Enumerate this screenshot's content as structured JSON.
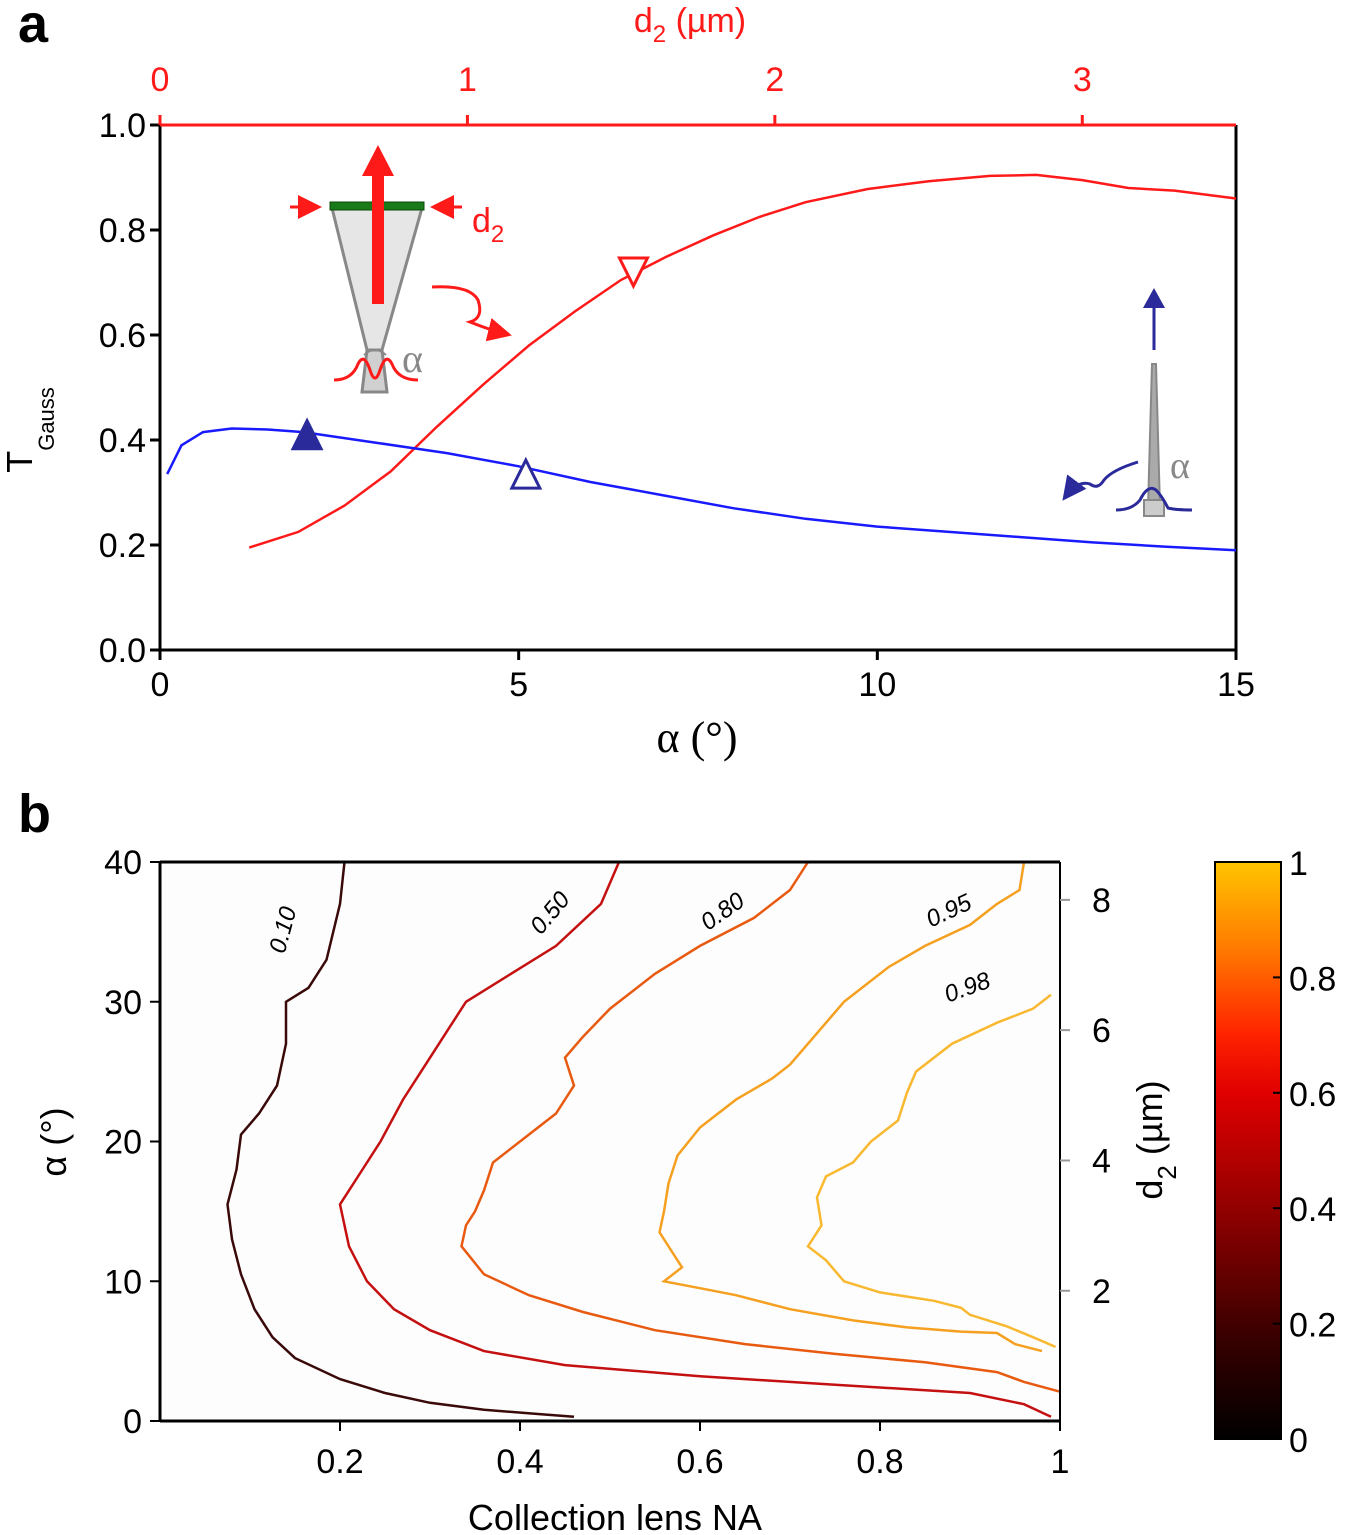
{
  "chart_data": [
    {
      "id": "a",
      "type": "line",
      "panel_label": "a",
      "xlabel": "α (°)",
      "ylabel_main": "T",
      "ylabel_sub": "Gauss",
      "top_xlabel_main": "d",
      "top_xlabel_sub": "2",
      "top_xlabel_unit": " (µm)",
      "xlim": [
        0,
        15
      ],
      "ylim": [
        0,
        1
      ],
      "top_xlim": [
        0,
        3.5
      ],
      "x_ticks": [
        0,
        5,
        10,
        15
      ],
      "x_tick_labels": [
        "0",
        "5",
        "10",
        "15"
      ],
      "y_ticks": [
        0,
        0.2,
        0.4,
        0.6,
        0.8,
        1.0
      ],
      "y_tick_labels": [
        "0.0",
        "0.2",
        "0.4",
        "0.6",
        "0.8",
        "1.0"
      ],
      "top_ticks": [
        0,
        1,
        2,
        3
      ],
      "top_tick_labels": [
        "0",
        "1",
        "2",
        "3"
      ],
      "series": [
        {
          "name": "d2 curve",
          "axis": "top",
          "color": "#ff1a1a",
          "points": [
            [
              0.29,
              0.195
            ],
            [
              0.45,
              0.225
            ],
            [
              0.6,
              0.275
            ],
            [
              0.75,
              0.34
            ],
            [
              0.9,
              0.425
            ],
            [
              1.05,
              0.505
            ],
            [
              1.2,
              0.58
            ],
            [
              1.35,
              0.645
            ],
            [
              1.5,
              0.705
            ],
            [
              1.65,
              0.75
            ],
            [
              1.8,
              0.79
            ],
            [
              1.95,
              0.825
            ],
            [
              2.1,
              0.853
            ],
            [
              2.3,
              0.878
            ],
            [
              2.5,
              0.893
            ],
            [
              2.7,
              0.903
            ],
            [
              2.85,
              0.905
            ],
            [
              3.0,
              0.895
            ],
            [
              3.15,
              0.88
            ],
            [
              3.3,
              0.875
            ],
            [
              3.5,
              0.86
            ]
          ]
        },
        {
          "name": "α curve",
          "axis": "bottom",
          "color": "#1a1aff",
          "points": [
            [
              0.1,
              0.335
            ],
            [
              0.3,
              0.39
            ],
            [
              0.6,
              0.415
            ],
            [
              1.0,
              0.422
            ],
            [
              1.5,
              0.42
            ],
            [
              2.0,
              0.415
            ],
            [
              3.0,
              0.395
            ],
            [
              4.0,
              0.375
            ],
            [
              5.0,
              0.35
            ],
            [
              6.0,
              0.32
            ],
            [
              7.0,
              0.295
            ],
            [
              8.0,
              0.27
            ],
            [
              9.0,
              0.25
            ],
            [
              10.0,
              0.235
            ],
            [
              11.0,
              0.225
            ],
            [
              12.0,
              0.215
            ],
            [
              13.0,
              0.205
            ],
            [
              14.0,
              0.197
            ],
            [
              15.0,
              0.19
            ]
          ]
        }
      ],
      "markers": [
        {
          "name": "filled-up-triangle",
          "x": 2.05,
          "y": 0.41,
          "color": "#2a2a9a",
          "fill": true,
          "dir": "up"
        },
        {
          "name": "open-up-triangle",
          "x": 5.1,
          "y": 0.335,
          "color": "#2a2a9a",
          "fill": false,
          "dir": "up"
        },
        {
          "name": "open-down-triangle",
          "x": 6.6,
          "y": 0.72,
          "color": "#ff1a1a",
          "fill": false,
          "dir": "down"
        }
      ],
      "annotations": {
        "inset_left": {
          "label_main": "d",
          "label_sub": "2",
          "alpha": "α"
        },
        "inset_right": {
          "alpha": "α"
        }
      }
    },
    {
      "id": "b",
      "type": "contour",
      "panel_label": "b",
      "xlabel": "Collection lens NA",
      "ylabel": "α (°)",
      "right_ylabel_main": "d",
      "right_ylabel_sub": "2",
      "right_ylabel_unit": " (µm)",
      "xlim": [
        0,
        1
      ],
      "ylim": [
        0,
        40
      ],
      "x_ticks": [
        0.2,
        0.4,
        0.6,
        0.8,
        1.0
      ],
      "x_tick_labels": [
        "0.2",
        "0.4",
        "0.6",
        "0.8",
        "1"
      ],
      "y_ticks": [
        0,
        10,
        20,
        30,
        40
      ],
      "y_tick_labels": [
        "0",
        "10",
        "20",
        "30",
        "40"
      ],
      "right_ticks_alpha": [
        9.32,
        18.64,
        27.97,
        37.29
      ],
      "right_tick_labels": [
        "2",
        "4",
        "6",
        "8"
      ],
      "colorbar": {
        "range": [
          0,
          1
        ],
        "ticks": [
          0,
          0.2,
          0.4,
          0.6,
          0.8,
          1
        ],
        "tick_labels": [
          "0",
          "0.2",
          "0.4",
          "0.6",
          "0.8",
          "1"
        ],
        "stops": [
          "#000000",
          "#3a0000",
          "#8a0000",
          "#e00000",
          "#ff2200",
          "#ff7a00",
          "#ffc400"
        ]
      },
      "contours": [
        {
          "level": "0.10",
          "color": "#3a0a0a",
          "label_pos": [
            0.145,
            35
          ],
          "label_rot": -75,
          "points": [
            [
              0.205,
              40
            ],
            [
              0.2,
              37
            ],
            [
              0.185,
              33
            ],
            [
              0.165,
              31
            ],
            [
              0.14,
              30
            ],
            [
              0.14,
              27
            ],
            [
              0.13,
              24
            ],
            [
              0.11,
              22
            ],
            [
              0.09,
              20.5
            ],
            [
              0.085,
              18
            ],
            [
              0.075,
              15.5
            ],
            [
              0.08,
              13
            ],
            [
              0.09,
              10.5
            ],
            [
              0.105,
              8
            ],
            [
              0.125,
              6
            ],
            [
              0.15,
              4.5
            ],
            [
              0.2,
              3
            ],
            [
              0.25,
              2
            ],
            [
              0.3,
              1.3
            ],
            [
              0.36,
              0.8
            ],
            [
              0.42,
              0.5
            ],
            [
              0.46,
              0.3
            ]
          ]
        },
        {
          "level": "0.50",
          "color": "#c41010",
          "label_pos": [
            0.44,
            36
          ],
          "label_rot": -50,
          "points": [
            [
              0.51,
              40
            ],
            [
              0.49,
              37
            ],
            [
              0.44,
              34
            ],
            [
              0.39,
              32
            ],
            [
              0.34,
              30
            ],
            [
              0.32,
              28
            ],
            [
              0.3,
              26
            ],
            [
              0.27,
              23
            ],
            [
              0.245,
              20
            ],
            [
              0.225,
              18
            ],
            [
              0.2,
              15.5
            ],
            [
              0.21,
              12.5
            ],
            [
              0.23,
              10
            ],
            [
              0.26,
              8
            ],
            [
              0.3,
              6.5
            ],
            [
              0.36,
              5
            ],
            [
              0.45,
              4
            ],
            [
              0.6,
              3.2
            ],
            [
              0.75,
              2.6
            ],
            [
              0.9,
              2
            ],
            [
              0.96,
              1.2
            ],
            [
              0.99,
              0.3
            ]
          ]
        },
        {
          "level": "0.80",
          "color": "#e85a10",
          "label_pos": [
            0.63,
            36
          ],
          "label_rot": -35,
          "points": [
            [
              0.72,
              40
            ],
            [
              0.7,
              38
            ],
            [
              0.66,
              36
            ],
            [
              0.6,
              34
            ],
            [
              0.55,
              32
            ],
            [
              0.5,
              29.5
            ],
            [
              0.47,
              27.5
            ],
            [
              0.45,
              26
            ],
            [
              0.46,
              24
            ],
            [
              0.44,
              22
            ],
            [
              0.4,
              20
            ],
            [
              0.37,
              18.5
            ],
            [
              0.36,
              16.5
            ],
            [
              0.35,
              15
            ],
            [
              0.34,
              14
            ],
            [
              0.335,
              12.5
            ],
            [
              0.36,
              10.5
            ],
            [
              0.41,
              9
            ],
            [
              0.47,
              7.8
            ],
            [
              0.55,
              6.5
            ],
            [
              0.65,
              5.5
            ],
            [
              0.75,
              4.8
            ],
            [
              0.85,
              4.2
            ],
            [
              0.93,
              3.5
            ],
            [
              0.96,
              2.8
            ],
            [
              1.0,
              2.1
            ]
          ]
        },
        {
          "level": "0.95",
          "color": "#f5a020",
          "label_pos": [
            0.88,
            36
          ],
          "label_rot": -25,
          "points": [
            [
              0.96,
              40
            ],
            [
              0.955,
              38
            ],
            [
              0.93,
              37
            ],
            [
              0.9,
              35.5
            ],
            [
              0.85,
              34
            ],
            [
              0.81,
              32.5
            ],
            [
              0.76,
              30
            ],
            [
              0.72,
              27
            ],
            [
              0.7,
              25.5
            ],
            [
              0.68,
              24.5
            ],
            [
              0.64,
              23
            ],
            [
              0.6,
              21
            ],
            [
              0.575,
              19
            ],
            [
              0.565,
              17
            ],
            [
              0.56,
              15
            ],
            [
              0.555,
              13.5
            ],
            [
              0.57,
              12
            ],
            [
              0.58,
              11
            ],
            [
              0.56,
              10
            ],
            [
              0.6,
              9.5
            ],
            [
              0.64,
              9
            ],
            [
              0.7,
              8
            ],
            [
              0.77,
              7.2
            ],
            [
              0.83,
              6.7
            ],
            [
              0.89,
              6.4
            ],
            [
              0.93,
              6.3
            ],
            [
              0.95,
              5.5
            ],
            [
              0.98,
              5
            ]
          ]
        },
        {
          "level": "0.98",
          "color": "#f8b830",
          "label_pos": [
            0.9,
            30.5
          ],
          "label_rot": -20,
          "points": [
            [
              0.99,
              30.5
            ],
            [
              0.97,
              29.5
            ],
            [
              0.93,
              28.5
            ],
            [
              0.88,
              27
            ],
            [
              0.84,
              25
            ],
            [
              0.83,
              23.5
            ],
            [
              0.82,
              21.5
            ],
            [
              0.79,
              20
            ],
            [
              0.77,
              18.5
            ],
            [
              0.74,
              17.5
            ],
            [
              0.73,
              16
            ],
            [
              0.735,
              14
            ],
            [
              0.72,
              12.5
            ],
            [
              0.74,
              11.5
            ],
            [
              0.76,
              10
            ],
            [
              0.8,
              9.2
            ],
            [
              0.86,
              8.6
            ],
            [
              0.89,
              8.1
            ],
            [
              0.9,
              7.6
            ],
            [
              0.92,
              7.2
            ],
            [
              0.94,
              6.8
            ],
            [
              0.97,
              6
            ],
            [
              0.995,
              5.3
            ]
          ]
        }
      ]
    }
  ]
}
